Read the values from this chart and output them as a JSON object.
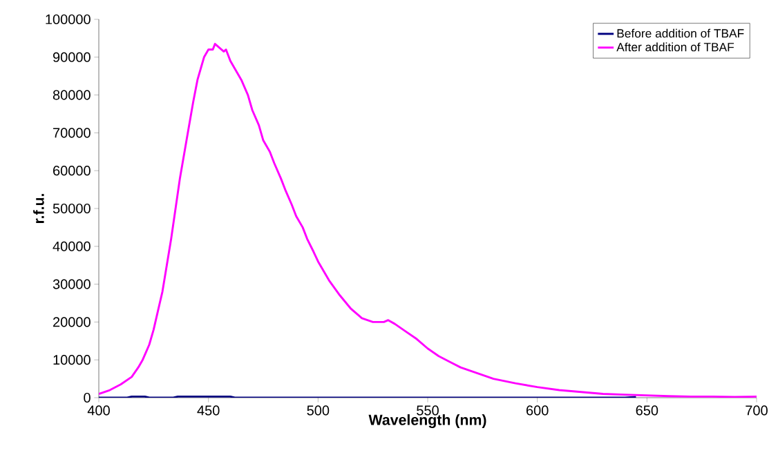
{
  "chart_data": {
    "type": "line",
    "xlabel": "Wavelength (nm)",
    "ylabel": "r.f.u.",
    "xlim": [
      400,
      700
    ],
    "xticks": [
      400,
      450,
      500,
      550,
      600,
      650,
      700
    ],
    "ylim": [
      0,
      100000
    ],
    "yticks": [
      0,
      10000,
      20000,
      30000,
      40000,
      50000,
      60000,
      70000,
      80000,
      90000,
      100000
    ],
    "grid": false,
    "legend": "top right",
    "marker": "none",
    "line_style": "solid",
    "series": [
      {
        "name": "Before addition of TBAF",
        "color": "#000080",
        "x": [
          400,
          413,
          415,
          421,
          423,
          434,
          436,
          460,
          462,
          640,
          645
        ],
        "values": [
          0,
          0,
          300,
          300,
          0,
          0,
          300,
          300,
          0,
          0,
          200
        ]
      },
      {
        "name": "After addition of TBAF",
        "color": "#ff00ff",
        "x": [
          400,
          405,
          410,
          415,
          418,
          420,
          423,
          425,
          427,
          429,
          431,
          433,
          435,
          437,
          440,
          443,
          445,
          447,
          448,
          450,
          452,
          453,
          455,
          457,
          458,
          460,
          463,
          465,
          468,
          470,
          473,
          475,
          478,
          480,
          483,
          485,
          488,
          490,
          493,
          495,
          498,
          500,
          505,
          510,
          515,
          518,
          520,
          525,
          530,
          532,
          535,
          540,
          545,
          550,
          555,
          560,
          565,
          570,
          575,
          580,
          590,
          600,
          610,
          620,
          630,
          640,
          650,
          660,
          670,
          680,
          690,
          700
        ],
        "values": [
          1000,
          2000,
          3500,
          5500,
          8000,
          10000,
          14000,
          18000,
          23000,
          28000,
          35000,
          42000,
          50000,
          58000,
          68000,
          78000,
          84000,
          88000,
          90000,
          92000,
          92000,
          93500,
          92500,
          91500,
          92000,
          89000,
          86000,
          84000,
          80000,
          76000,
          72000,
          68000,
          65000,
          62000,
          58000,
          55000,
          51000,
          48000,
          45000,
          42000,
          38500,
          36000,
          31000,
          27000,
          23500,
          22000,
          21000,
          20000,
          20000,
          20500,
          19500,
          17500,
          15500,
          13000,
          11000,
          9500,
          8000,
          7000,
          6000,
          5000,
          3800,
          2800,
          2000,
          1500,
          1000,
          800,
          600,
          400,
          300,
          300,
          200,
          300
        ]
      }
    ]
  }
}
